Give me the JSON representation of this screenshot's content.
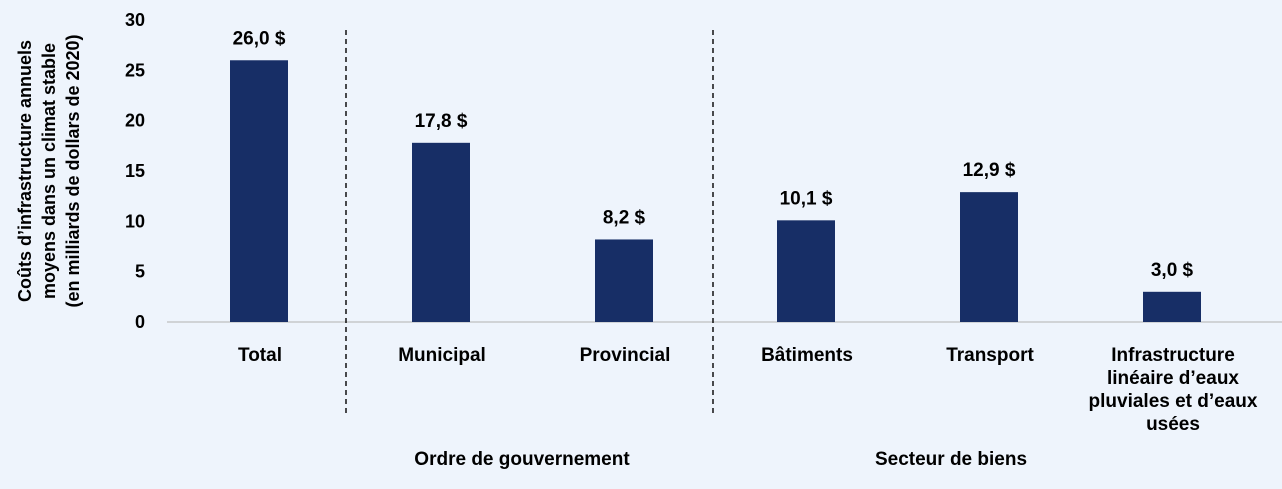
{
  "chart_data": {
    "type": "bar",
    "categories": [
      "Total",
      "Municipal",
      "Provincial",
      "Bâtiments",
      "Transport",
      "Infrastructure linéaire d’eaux pluviales et d’eaux usées"
    ],
    "category_lines": [
      [
        "Total"
      ],
      [
        "Municipal"
      ],
      [
        "Provincial"
      ],
      [
        "Bâtiments"
      ],
      [
        "Transport"
      ],
      [
        "Infrastructure",
        "linéaire d’eaux",
        "pluviales et d’eaux",
        "usées"
      ]
    ],
    "values": [
      26.0,
      17.8,
      8.2,
      10.1,
      12.9,
      3.0
    ],
    "data_labels": [
      "26,0 $",
      "17,8 $",
      "8,2 $",
      "10,1 $",
      "12,9 $",
      "3,0 $"
    ],
    "groups": [
      {
        "label": "Ordre de gouvernement",
        "categories": [
          "Municipal",
          "Provincial"
        ]
      },
      {
        "label": "Secteur de biens",
        "categories": [
          "Bâtiments",
          "Transport",
          "Infrastructure linéaire d’eaux pluviales et d’eaux usées"
        ]
      }
    ],
    "title": "",
    "xlabel": "",
    "ylabel_lines": [
      "Coûts d’infrastructure annuels",
      "moyens dans un climat stable",
      "(en milliards de dollars de 2020)"
    ],
    "ylim": [
      0,
      30
    ],
    "yticks": [
      "0",
      "5",
      "10",
      "15",
      "20",
      "25",
      "30"
    ],
    "grid": false,
    "legend": "none",
    "colors": {
      "bar": "#172e66",
      "background": "#eef4fc",
      "axis": "#bfbfbf",
      "separator": "#000000"
    }
  }
}
